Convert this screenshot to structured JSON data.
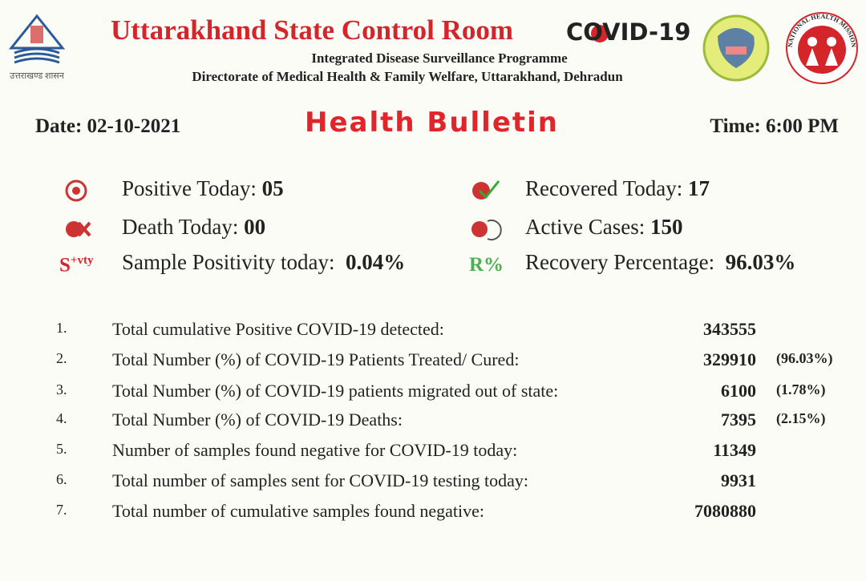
{
  "header": {
    "title": "Uttarakhand State Control Room",
    "covid": "COVID-19",
    "programme": "Integrated Disease Surveillance Programme",
    "directorate": "Directorate of Medical Health & Family Welfare, Uttarakhand, Dehradun",
    "left_logo_caption": "उत्तराखण्ड शासन",
    "right_logo_text": "NATIONAL HEALTH MISSION"
  },
  "bulletin": {
    "date": "Date: 02-10-2021",
    "title": "Health Bulletin",
    "time": "Time: 6:00 PM"
  },
  "stats": [
    {
      "label": "Positive Today:",
      "value": "05"
    },
    {
      "label": "Recovered Today:",
      "value": "17"
    },
    {
      "label": "Death Today:",
      "value": "00"
    },
    {
      "label": "Active Cases:",
      "value": "150"
    },
    {
      "icon": "S",
      "icon_sup": "+vty",
      "label": "Sample Positivity today:",
      "value": "0.04%"
    },
    {
      "icon": "R%",
      "label": "Recovery Percentage:",
      "value": "96.03%"
    }
  ],
  "table": {
    "rows": [
      {
        "no": "1.",
        "label": "Total cumulative Positive COVID-19 detected:",
        "value": "343555"
      },
      {
        "no": "2.",
        "label": "Total Number (%) of COVID-19 Patients Treated/ Cured:",
        "value": "329910",
        "pct": "(96.03%)"
      },
      {
        "no": "3.",
        "label": "Total Number (%) of COVID-19 patients migrated out of state:",
        "value": "6100",
        "pct": "(1.78%)"
      },
      {
        "no": "4.",
        "label": "Total Number (%) of COVID-19 Deaths:",
        "value": "7395",
        "pct": "(2.15%)"
      },
      {
        "no": "5.",
        "label": "Number of samples found negative for COVID-19 today:",
        "value": "11349"
      },
      {
        "no": "6.",
        "label": "Total number of samples sent for COVID-19 testing today:",
        "value": "9931"
      },
      {
        "no": "7.",
        "label": "Total number of cumulative samples found negative:",
        "value": "7080880"
      }
    ]
  }
}
